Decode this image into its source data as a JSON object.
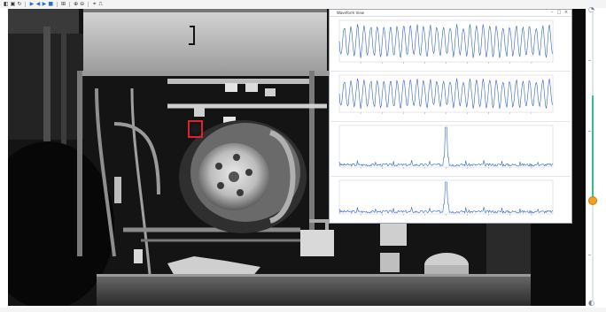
{
  "toolbar": {
    "icons": [
      "open-icon",
      "save-icon",
      "rotate-icon",
      "play-icon",
      "step-back-icon",
      "step-forward-icon",
      "stop-icon",
      "grid-icon",
      "zoom-in-icon",
      "zoom-out-icon",
      "roi-icon",
      "chart-icon"
    ]
  },
  "chart_window": {
    "title": "Waveform View"
  },
  "side_scale": {
    "level_fraction": 0.66,
    "accent_color": "#35c08a",
    "knob_color": "#f2a01c"
  },
  "colors": {
    "roi": "#e0202a",
    "trace": "#2e63c9"
  }
}
